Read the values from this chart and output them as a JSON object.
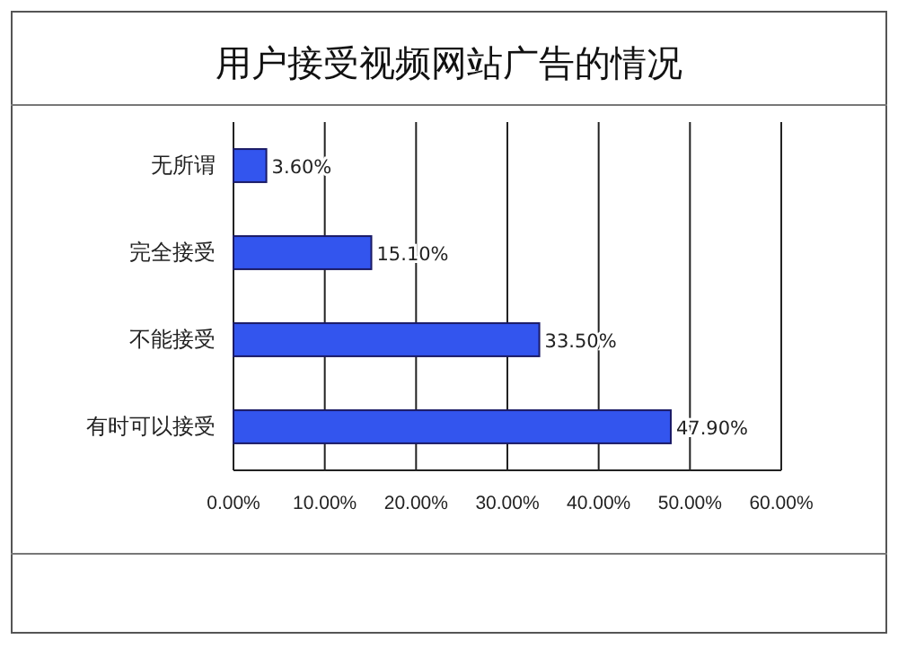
{
  "chart_data": {
    "type": "bar",
    "orientation": "horizontal",
    "title": "用户接受视频网站广告的情况",
    "categories": [
      "无所谓",
      "完全接受",
      "不能接受",
      "有时可以接受"
    ],
    "values": [
      3.6,
      15.1,
      33.5,
      47.9
    ],
    "value_labels": [
      "3.60%",
      "15.10%",
      "33.50%",
      "47.90%"
    ],
    "color": "#3355ee",
    "xlim": [
      0,
      60
    ],
    "xticks": [
      {
        "value": 0,
        "label": "0.00%"
      },
      {
        "value": 10,
        "label": "10.00%"
      },
      {
        "value": 20,
        "label": "20.00%"
      },
      {
        "value": 30,
        "label": "30.00%"
      },
      {
        "value": 40,
        "label": "40.00%"
      },
      {
        "value": 50,
        "label": "50.00%"
      },
      {
        "value": 60,
        "label": "60.00%"
      }
    ],
    "grid": "x"
  }
}
